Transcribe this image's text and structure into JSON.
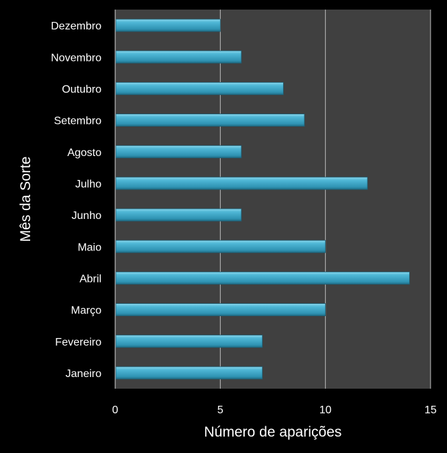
{
  "chart_data": {
    "type": "bar",
    "orientation": "horizontal",
    "categories": [
      "Janeiro",
      "Fevereiro",
      "Março",
      "Abril",
      "Maio",
      "Junho",
      "Julho",
      "Agosto",
      "Setembro",
      "Outubro",
      "Novembro",
      "Dezembro"
    ],
    "values": [
      7,
      7,
      10,
      14,
      10,
      6,
      12,
      6,
      9,
      8,
      6,
      5
    ],
    "xlabel": "Número de aparições",
    "ylabel": "Mês da Sorte",
    "xlim": [
      0,
      15
    ],
    "xticks": [
      "0",
      "5",
      "10",
      "15"
    ],
    "grid": "vertical",
    "legend": "none",
    "colors": {
      "bar": "#3aa3c4",
      "bar_highlight": "#7fd0e8",
      "plot_bg": "#404040",
      "page_bg": "#000000",
      "grid": "#bfbfbf"
    }
  }
}
